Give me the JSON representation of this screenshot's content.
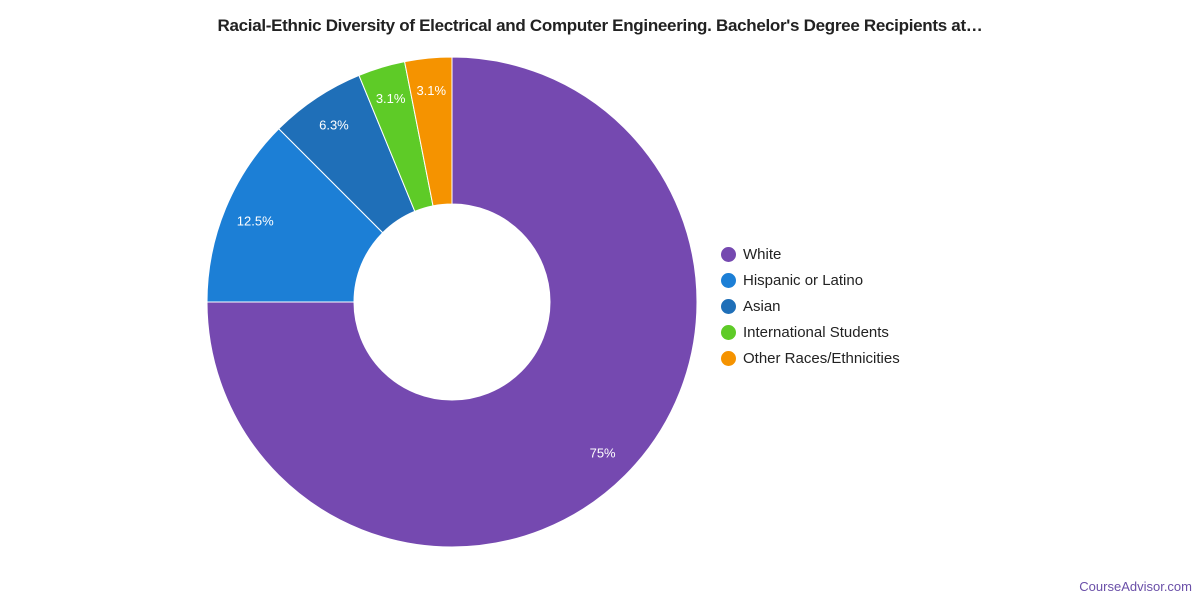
{
  "chart_data": {
    "type": "pie",
    "donut": true,
    "title": "Racial-Ethnic Diversity of Electrical and Computer Engineering. Bachelor's Degree Recipients at…",
    "slices": [
      {
        "label": "White",
        "value": 75,
        "display": "75%",
        "color": "#7549b0"
      },
      {
        "label": "Hispanic or Latino",
        "value": 12.5,
        "display": "12.5%",
        "color": "#1c7fd6"
      },
      {
        "label": "Asian",
        "value": 6.3,
        "display": "6.3%",
        "color": "#1f6fb8"
      },
      {
        "label": "International Students",
        "value": 3.1,
        "display": "3.1%",
        "color": "#5ecb27"
      },
      {
        "label": "Other Races/Ethnicities",
        "value": 3.1,
        "display": "3.1%",
        "color": "#f59300"
      }
    ],
    "legend_position": "right"
  },
  "footer": "CourseAdvisor.com"
}
